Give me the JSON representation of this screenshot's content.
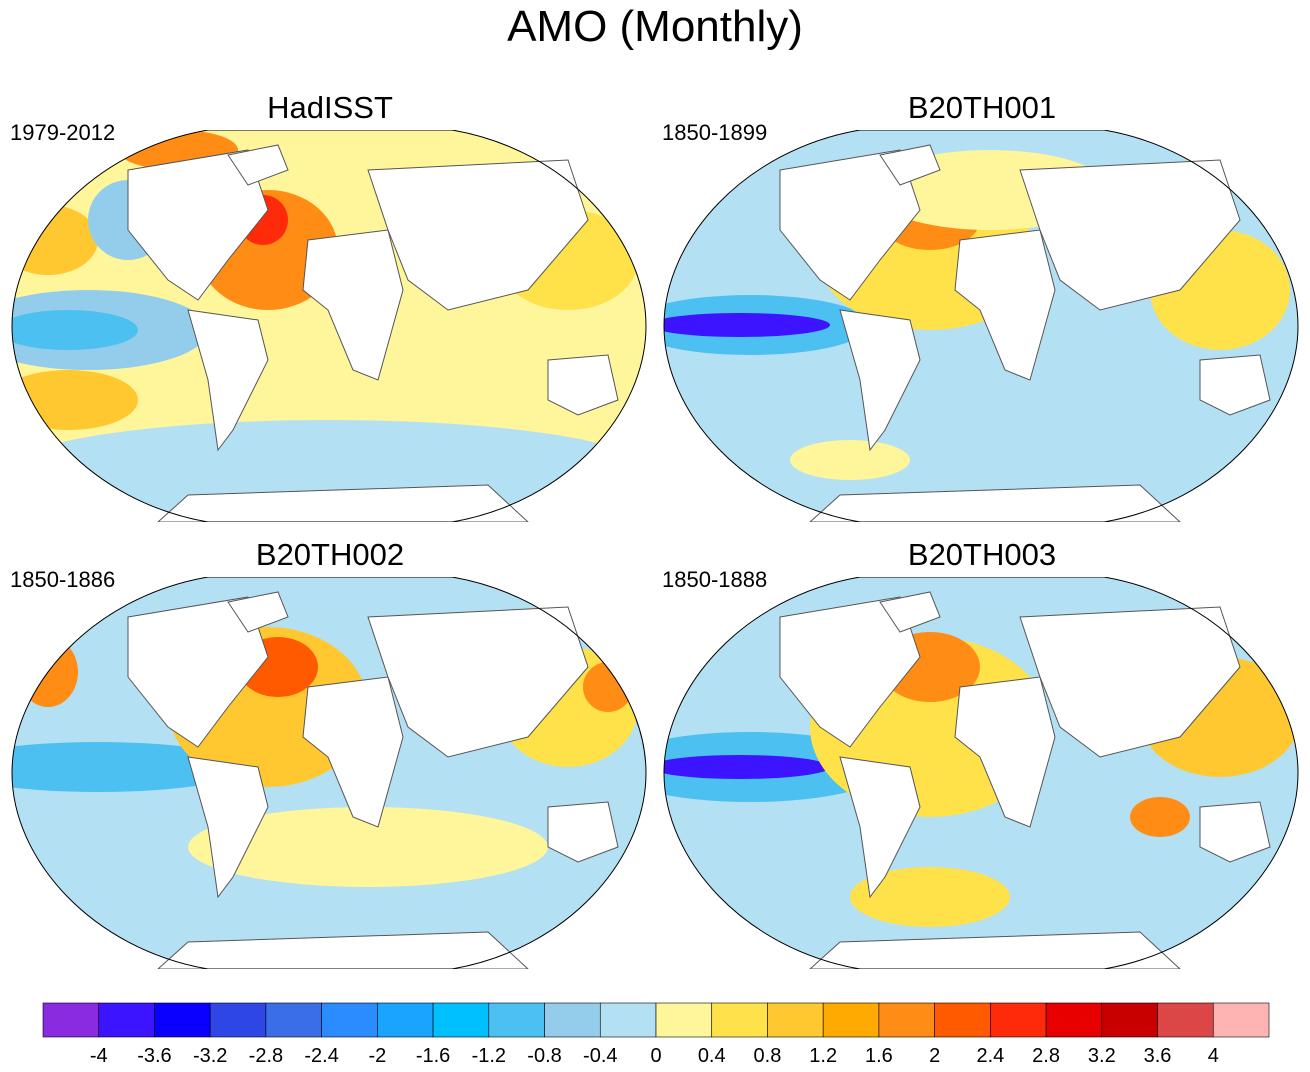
{
  "title": "AMO (Monthly)",
  "panels": [
    {
      "title": "HadISST",
      "period": "1979-2012"
    },
    {
      "title": "B20TH001",
      "period": "1850-1899"
    },
    {
      "title": "B20TH002",
      "period": "1850-1886"
    },
    {
      "title": "B20TH003",
      "period": "1850-1888"
    }
  ],
  "colorbar": {
    "labels": [
      "-4",
      "-3.6",
      "-3.2",
      "-2.8",
      "-2.4",
      "-2",
      "-1.6",
      "-1.2",
      "-0.8",
      "-0.4",
      "0",
      "0.4",
      "0.8",
      "1.2",
      "1.6",
      "2",
      "2.4",
      "2.8",
      "3.2",
      "3.6",
      "4"
    ],
    "colors": [
      "#8a2be2",
      "#3c14ff",
      "#0a00ff",
      "#2e46e6",
      "#3a6ee8",
      "#2a8cff",
      "#18a4ff",
      "#00c0ff",
      "#4cc0f0",
      "#94cdec",
      "#b4e0f4",
      "#fff59a",
      "#ffe14a",
      "#ffc830",
      "#ffaa00",
      "#ff8c14",
      "#ff5a00",
      "#ff2a0a",
      "#e80000",
      "#c80000",
      "#dc4646",
      "#ffb4b4"
    ]
  }
}
